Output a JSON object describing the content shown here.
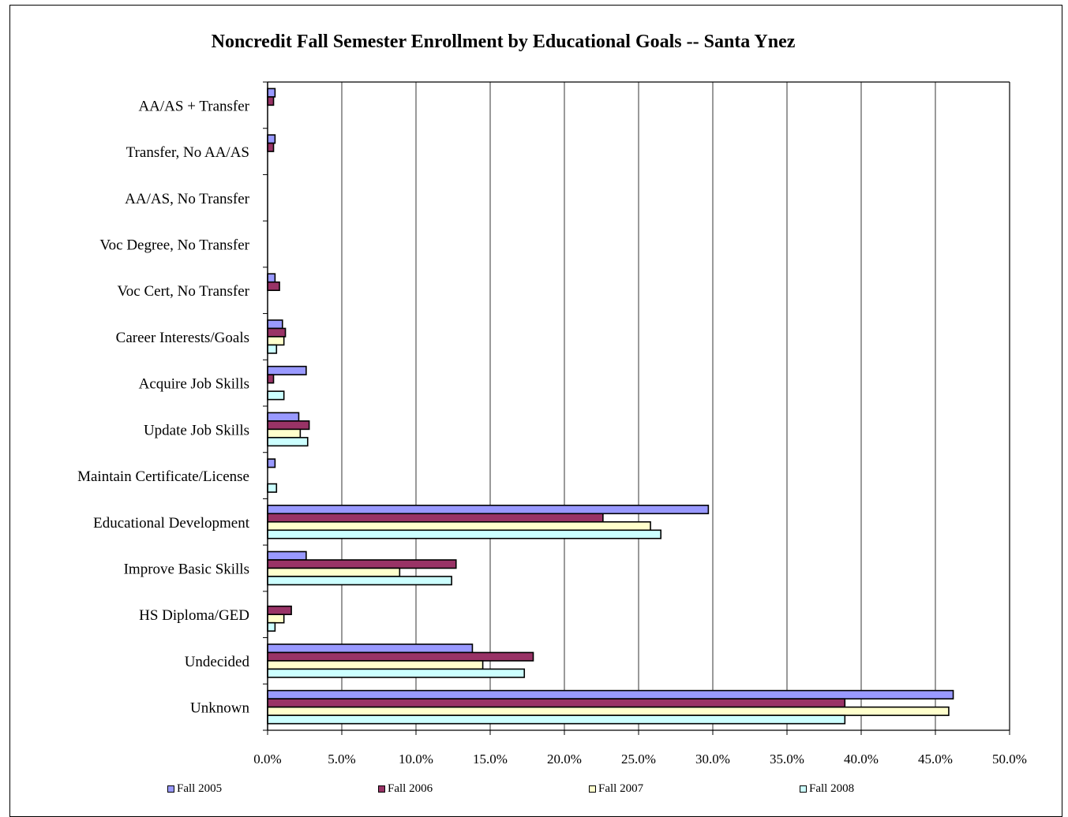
{
  "chart_data": {
    "type": "bar",
    "orientation": "horizontal",
    "title": "Noncredit Fall Semester Enrollment by Educational Goals -- Santa Ynez",
    "categories": [
      "AA/AS + Transfer",
      "Transfer, No AA/AS",
      "AA/AS, No Transfer",
      "Voc Degree, No Transfer",
      "Voc Cert, No Transfer",
      "Career Interests/Goals",
      "Acquire Job Skills",
      "Update Job Skills",
      "Maintain Certificate/License",
      "Educational Development",
      "Improve Basic Skills",
      "HS Diploma/GED",
      "Undecided",
      "Unknown"
    ],
    "series": [
      {
        "name": "Fall 2005",
        "color": "#9999FF",
        "values": [
          0.5,
          0.5,
          0,
          0,
          0.5,
          1.0,
          2.6,
          2.1,
          0.5,
          29.7,
          2.6,
          0,
          13.8,
          46.2
        ]
      },
      {
        "name": "Fall 2006",
        "color": "#993366",
        "values": [
          0.4,
          0.4,
          0,
          0,
          0.8,
          1.2,
          0.4,
          2.8,
          0,
          22.6,
          12.7,
          1.6,
          17.9,
          38.9
        ]
      },
      {
        "name": "Fall 2007",
        "color": "#FFFFCC",
        "values": [
          0,
          0,
          0,
          0,
          0,
          1.1,
          0,
          2.2,
          0,
          25.8,
          8.9,
          1.1,
          14.5,
          45.9
        ]
      },
      {
        "name": "Fall 2008",
        "color": "#CCFFFF",
        "values": [
          0,
          0,
          0,
          0,
          0,
          0.6,
          1.1,
          2.7,
          0.6,
          26.5,
          12.4,
          0.5,
          17.3,
          38.9
        ]
      }
    ],
    "xlim": [
      0,
      50
    ],
    "x_ticks": [
      "0.0%",
      "5.0%",
      "10.0%",
      "15.0%",
      "20.0%",
      "25.0%",
      "30.0%",
      "35.0%",
      "40.0%",
      "45.0%",
      "50.0%"
    ],
    "grid": "vertical",
    "legend_position": "bottom"
  }
}
